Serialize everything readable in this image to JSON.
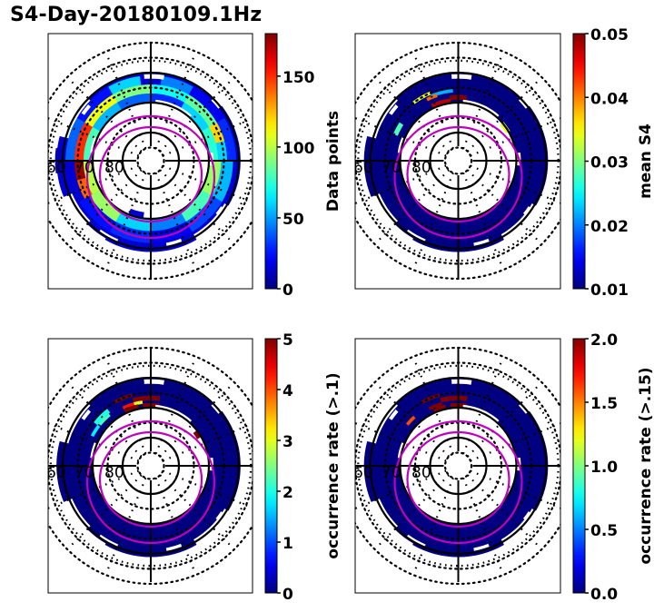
{
  "title": "S4-Day-20180109.1Hz",
  "chart_data": [
    {
      "type": "heatmap",
      "projection": "polar (magnetic latitude / MLT)",
      "panel": "top-left",
      "colormap": "jet",
      "colorbar": {
        "label": "Data points",
        "range": [
          0,
          180
        ],
        "ticks": [
          0,
          50,
          100,
          150
        ],
        "tick_labels": [
          "0",
          "50",
          "100",
          "150"
        ]
      },
      "lat_labels": [
        "60",
        "70",
        "80"
      ],
      "lat_circles": [
        60,
        70,
        80
      ],
      "bins": [
        {
          "mlt": [
            11.5,
            12.5
          ],
          "lat": [
            60,
            63
          ],
          "value": 15
        },
        {
          "mlt": [
            10,
            11.5
          ],
          "lat": [
            61,
            64
          ],
          "value": 60
        },
        {
          "mlt": [
            12.5,
            14
          ],
          "lat": [
            61,
            64
          ],
          "value": 45
        },
        {
          "mlt": [
            14,
            16
          ],
          "lat": [
            61,
            64
          ],
          "value": 20
        },
        {
          "mlt": [
            16,
            18
          ],
          "lat": [
            61,
            64
          ],
          "value": 30
        },
        {
          "mlt": [
            8,
            10
          ],
          "lat": [
            61,
            64
          ],
          "value": 25
        },
        {
          "mlt": [
            6,
            8
          ],
          "lat": [
            61,
            64
          ],
          "value": 40
        },
        {
          "mlt": [
            10,
            12
          ],
          "lat": [
            64,
            67
          ],
          "value": 90
        },
        {
          "mlt": [
            12,
            14
          ],
          "lat": [
            64,
            67
          ],
          "value": 70
        },
        {
          "mlt": [
            14,
            16
          ],
          "lat": [
            64,
            67
          ],
          "value": 85
        },
        {
          "mlt": [
            16,
            17
          ],
          "lat": [
            64,
            67
          ],
          "value": 120
        },
        {
          "mlt": [
            17,
            18
          ],
          "lat": [
            64,
            67
          ],
          "value": 60
        },
        {
          "mlt": [
            8,
            10
          ],
          "lat": [
            64,
            67
          ],
          "value": 110
        },
        {
          "mlt": [
            6,
            8
          ],
          "lat": [
            64,
            67
          ],
          "value": 150
        },
        {
          "mlt": [
            5,
            6
          ],
          "lat": [
            64,
            67
          ],
          "value": 175
        },
        {
          "mlt": [
            4,
            5
          ],
          "lat": [
            64,
            67
          ],
          "value": 140
        },
        {
          "mlt": [
            10,
            12
          ],
          "lat": [
            67,
            70
          ],
          "value": 40
        },
        {
          "mlt": [
            12,
            14
          ],
          "lat": [
            67,
            70
          ],
          "value": 30
        },
        {
          "mlt": [
            14,
            16
          ],
          "lat": [
            67,
            70
          ],
          "value": 60
        },
        {
          "mlt": [
            16,
            18
          ],
          "lat": [
            67,
            70
          ],
          "value": 75
        },
        {
          "mlt": [
            8,
            10
          ],
          "lat": [
            67,
            70
          ],
          "value": 55
        },
        {
          "mlt": [
            6,
            8
          ],
          "lat": [
            67,
            70
          ],
          "value": 80
        },
        {
          "mlt": [
            4,
            6
          ],
          "lat": [
            67,
            70
          ],
          "value": 100
        },
        {
          "mlt": [
            18,
            20
          ],
          "lat": [
            62,
            66
          ],
          "value": 55
        },
        {
          "mlt": [
            18,
            20
          ],
          "lat": [
            66,
            70
          ],
          "value": 95
        },
        {
          "mlt": [
            20,
            22
          ],
          "lat": [
            62,
            66
          ],
          "value": 35
        },
        {
          "mlt": [
            20,
            22
          ],
          "lat": [
            66,
            70
          ],
          "value": 80
        },
        {
          "mlt": [
            22,
            24
          ],
          "lat": [
            62,
            66
          ],
          "value": 20
        },
        {
          "mlt": [
            22,
            24
          ],
          "lat": [
            66,
            70
          ],
          "value": 45
        },
        {
          "mlt": [
            0,
            2
          ],
          "lat": [
            62,
            66
          ],
          "value": 30
        },
        {
          "mlt": [
            0,
            2
          ],
          "lat": [
            66,
            70
          ],
          "value": 60
        },
        {
          "mlt": [
            2,
            4
          ],
          "lat": [
            62,
            66
          ],
          "value": 25
        },
        {
          "mlt": [
            2,
            4
          ],
          "lat": [
            66,
            70
          ],
          "value": 95
        },
        {
          "mlt": [
            0.5,
            1.5
          ],
          "lat": [
            70,
            72
          ],
          "value": 15
        },
        {
          "mlt": [
            5.5,
            6.5
          ],
          "lat": [
            57.5,
            60
          ],
          "value": 10
        }
      ],
      "oval_model": [
        "inner auroral oval boundary",
        "outer auroral oval boundary"
      ]
    },
    {
      "type": "heatmap",
      "projection": "polar (magnetic latitude / MLT)",
      "panel": "top-right",
      "colormap": "jet",
      "colorbar": {
        "label": "mean S4",
        "range": [
          0.01,
          0.05
        ],
        "ticks": [
          0.01,
          0.02,
          0.03,
          0.04,
          0.05
        ],
        "tick_labels": [
          "0.01",
          "0.02",
          "0.03",
          "0.04",
          "0.05"
        ]
      },
      "lat_labels": [
        "60",
        "70",
        "80"
      ],
      "lat_circles": [
        60,
        70,
        80
      ],
      "background_value": 0.01,
      "bins": [
        {
          "mlt": [
            9.5,
            10.5
          ],
          "lat": [
            64.5,
            65.5
          ],
          "value": 0.034
        },
        {
          "mlt": [
            10.5,
            11.7
          ],
          "lat": [
            65.5,
            66.5
          ],
          "value": 0.022
        },
        {
          "mlt": [
            10.2,
            10.8
          ],
          "lat": [
            66,
            67
          ],
          "value": 0.041
        },
        {
          "mlt": [
            11.5,
            12.5
          ],
          "lat": [
            67.5,
            69
          ],
          "value": 0.05
        },
        {
          "mlt": [
            10.3,
            11.5
          ],
          "lat": [
            68.5,
            70
          ],
          "value": 0.048
        },
        {
          "mlt": [
            7.5,
            8.2
          ],
          "lat": [
            66,
            67.5
          ],
          "value": 0.028
        },
        {
          "mlt": [
            15.3,
            16
          ],
          "lat": [
            69.5,
            71
          ],
          "value": 0.034
        }
      ]
    },
    {
      "type": "heatmap",
      "projection": "polar (magnetic latitude / MLT)",
      "panel": "bottom-left",
      "colormap": "jet",
      "colorbar": {
        "label": "occurrence rate (>.1)",
        "range": [
          0,
          5
        ],
        "ticks": [
          0,
          1,
          2,
          3,
          4,
          5
        ],
        "tick_labels": [
          "0",
          "1",
          "2",
          "3",
          "4",
          "5"
        ]
      },
      "lat_labels": [
        "60",
        "70",
        "80"
      ],
      "lat_circles": [
        60,
        70,
        80
      ],
      "background_value": 0,
      "bins": [
        {
          "mlt": [
            10,
            11
          ],
          "lat": [
            64.5,
            65.5
          ],
          "value": 5
        },
        {
          "mlt": [
            11,
            12.5
          ],
          "lat": [
            66,
            67.5
          ],
          "value": 5
        },
        {
          "mlt": [
            10.3,
            11
          ],
          "lat": [
            67.5,
            68.5
          ],
          "value": 4.3
        },
        {
          "mlt": [
            11,
            11.5
          ],
          "lat": [
            67.5,
            68.5
          ],
          "value": 3
        },
        {
          "mlt": [
            11.5,
            12.5
          ],
          "lat": [
            68.5,
            70
          ],
          "value": 5
        },
        {
          "mlt": [
            10.3,
            11.2
          ],
          "lat": [
            68.5,
            70
          ],
          "value": 5
        },
        {
          "mlt": [
            8.5,
            9.5
          ],
          "lat": [
            65.5,
            67
          ],
          "value": 2
        },
        {
          "mlt": [
            8.6,
            9.4
          ],
          "lat": [
            67,
            68
          ],
          "value": 2.2
        },
        {
          "mlt": [
            7.8,
            8.5
          ],
          "lat": [
            67,
            68
          ],
          "value": 1.8
        },
        {
          "mlt": [
            15.5,
            16
          ],
          "lat": [
            70,
            71.5
          ],
          "value": 5
        }
      ]
    },
    {
      "type": "heatmap",
      "projection": "polar (magnetic latitude / MLT)",
      "panel": "bottom-right",
      "colormap": "jet",
      "colorbar": {
        "label": "occurrence rate (>.15)",
        "range": [
          0,
          2
        ],
        "ticks": [
          0,
          0.5,
          1,
          1.5,
          2
        ],
        "tick_labels": [
          "0.0",
          "0.5",
          "1.0",
          "1.5",
          "2.0"
        ]
      },
      "lat_labels": [
        "60",
        "70",
        "80"
      ],
      "lat_circles": [
        60,
        70,
        80
      ],
      "background_value": 0,
      "bins": [
        {
          "mlt": [
            10,
            11
          ],
          "lat": [
            64.5,
            65.5
          ],
          "value": 2
        },
        {
          "mlt": [
            11,
            12.5
          ],
          "lat": [
            66,
            67.5
          ],
          "value": 2
        },
        {
          "mlt": [
            10.2,
            11
          ],
          "lat": [
            67.5,
            68.5
          ],
          "value": 2
        },
        {
          "mlt": [
            11.5,
            12.5
          ],
          "lat": [
            68.5,
            70
          ],
          "value": 2
        },
        {
          "mlt": [
            10.4,
            11.2
          ],
          "lat": [
            68.5,
            70
          ],
          "value": 2
        },
        {
          "mlt": [
            8.6,
            9.2
          ],
          "lat": [
            67,
            68
          ],
          "value": 1.6
        }
      ]
    }
  ]
}
